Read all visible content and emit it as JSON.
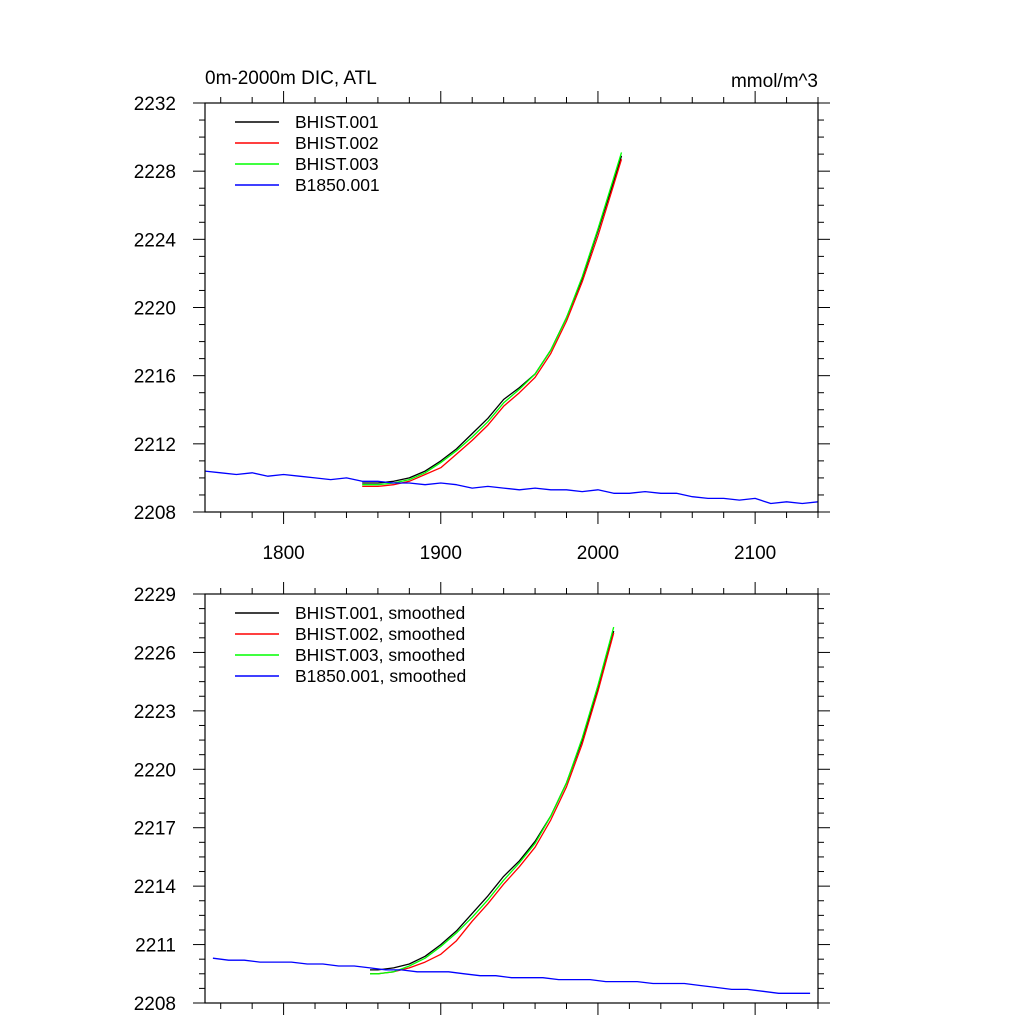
{
  "chart_data": [
    {
      "type": "line",
      "title": "0m-2000m DIC, ATL",
      "units": "mmol/m^3",
      "xlim": [
        1750,
        2140
      ],
      "ylim": [
        2208,
        2232
      ],
      "xticks": [
        1800,
        1900,
        2000,
        2100
      ],
      "yticks": [
        2208,
        2212,
        2216,
        2220,
        2224,
        2228,
        2232
      ],
      "legend_position": "top-left",
      "series": [
        {
          "name": "BHIST.001",
          "color": "#000000",
          "x": [
            1850,
            1860,
            1870,
            1880,
            1890,
            1900,
            1910,
            1920,
            1930,
            1940,
            1950,
            1960,
            1970,
            1980,
            1990,
            2000,
            2010,
            2015
          ],
          "y": [
            2209.7,
            2209.7,
            2209.8,
            2210.0,
            2210.4,
            2211.0,
            2211.7,
            2212.6,
            2213.5,
            2214.6,
            2215.3,
            2216.1,
            2217.5,
            2219.4,
            2221.7,
            2224.5,
            2227.4,
            2228.9
          ]
        },
        {
          "name": "BHIST.002",
          "color": "#ff0000",
          "x": [
            1850,
            1860,
            1870,
            1880,
            1890,
            1900,
            1910,
            1920,
            1930,
            1940,
            1950,
            1960,
            1970,
            1980,
            1990,
            2000,
            2010,
            2015
          ],
          "y": [
            2209.5,
            2209.5,
            2209.6,
            2209.8,
            2210.2,
            2210.6,
            2211.4,
            2212.2,
            2213.1,
            2214.2,
            2215.0,
            2215.9,
            2217.3,
            2219.2,
            2221.5,
            2224.2,
            2227.2,
            2228.7
          ]
        },
        {
          "name": "BHIST.003",
          "color": "#00ff00",
          "x": [
            1850,
            1860,
            1870,
            1880,
            1890,
            1900,
            1910,
            1920,
            1930,
            1940,
            1950,
            1960,
            1970,
            1980,
            1990,
            2000,
            2010,
            2015
          ],
          "y": [
            2209.6,
            2209.6,
            2209.7,
            2209.9,
            2210.3,
            2210.9,
            2211.6,
            2212.4,
            2213.3,
            2214.4,
            2215.2,
            2216.1,
            2217.5,
            2219.4,
            2221.8,
            2224.6,
            2227.6,
            2229.1
          ]
        },
        {
          "name": "B1850.001",
          "color": "#0000ff",
          "x": [
            1750,
            1760,
            1770,
            1780,
            1790,
            1800,
            1810,
            1820,
            1830,
            1840,
            1850,
            1860,
            1870,
            1880,
            1890,
            1900,
            1910,
            1920,
            1930,
            1940,
            1950,
            1960,
            1970,
            1980,
            1990,
            2000,
            2010,
            2020,
            2030,
            2040,
            2050,
            2060,
            2070,
            2080,
            2090,
            2100,
            2110,
            2120,
            2130,
            2140
          ],
          "y": [
            2210.4,
            2210.3,
            2210.2,
            2210.3,
            2210.1,
            2210.2,
            2210.1,
            2210.0,
            2209.9,
            2210.0,
            2209.8,
            2209.8,
            2209.7,
            2209.7,
            2209.6,
            2209.7,
            2209.6,
            2209.4,
            2209.5,
            2209.4,
            2209.3,
            2209.4,
            2209.3,
            2209.3,
            2209.2,
            2209.3,
            2209.1,
            2209.1,
            2209.2,
            2209.1,
            2209.1,
            2208.9,
            2208.8,
            2208.8,
            2208.7,
            2208.8,
            2208.5,
            2208.6,
            2208.5,
            2208.6
          ]
        }
      ]
    },
    {
      "type": "line",
      "xlim": [
        1750,
        2140
      ],
      "ylim": [
        2208,
        2229
      ],
      "xticks": [
        1800,
        1900,
        2000,
        2100
      ],
      "yticks": [
        2208,
        2211,
        2214,
        2217,
        2220,
        2223,
        2226,
        2229
      ],
      "legend_position": "top-left",
      "series": [
        {
          "name": "BHIST.001, smoothed",
          "color": "#000000",
          "x": [
            1855,
            1860,
            1870,
            1880,
            1890,
            1900,
            1910,
            1920,
            1930,
            1940,
            1950,
            1960,
            1970,
            1980,
            1990,
            2000,
            2010
          ],
          "y": [
            2209.7,
            2209.7,
            2209.8,
            2210.0,
            2210.4,
            2211.0,
            2211.7,
            2212.6,
            2213.5,
            2214.5,
            2215.3,
            2216.3,
            2217.6,
            2219.3,
            2221.5,
            2224.1,
            2227.1
          ]
        },
        {
          "name": "BHIST.002, smoothed",
          "color": "#ff0000",
          "x": [
            1855,
            1860,
            1870,
            1880,
            1890,
            1900,
            1910,
            1920,
            1930,
            1940,
            1950,
            1960,
            1970,
            1980,
            1990,
            2000,
            2010
          ],
          "y": [
            2209.5,
            2209.5,
            2209.6,
            2209.8,
            2210.1,
            2210.5,
            2211.2,
            2212.2,
            2213.1,
            2214.1,
            2215.0,
            2216.0,
            2217.4,
            2219.1,
            2221.3,
            2224.0,
            2227.0
          ]
        },
        {
          "name": "BHIST.003, smoothed",
          "color": "#00ff00",
          "x": [
            1855,
            1860,
            1870,
            1880,
            1890,
            1900,
            1910,
            1920,
            1930,
            1940,
            1950,
            1960,
            1970,
            1980,
            1990,
            2000,
            2010
          ],
          "y": [
            2209.5,
            2209.5,
            2209.6,
            2209.9,
            2210.3,
            2210.9,
            2211.6,
            2212.4,
            2213.3,
            2214.3,
            2215.2,
            2216.2,
            2217.6,
            2219.3,
            2221.6,
            2224.3,
            2227.3
          ]
        },
        {
          "name": "B1850.001, smoothed",
          "color": "#0000ff",
          "x": [
            1755,
            1765,
            1775,
            1785,
            1795,
            1805,
            1815,
            1825,
            1835,
            1845,
            1855,
            1865,
            1875,
            1885,
            1895,
            1905,
            1915,
            1925,
            1935,
            1945,
            1955,
            1965,
            1975,
            1985,
            1995,
            2005,
            2015,
            2025,
            2035,
            2045,
            2055,
            2065,
            2075,
            2085,
            2095,
            2105,
            2115,
            2125,
            2135
          ],
          "y": [
            2210.3,
            2210.2,
            2210.2,
            2210.1,
            2210.1,
            2210.1,
            2210.0,
            2210.0,
            2209.9,
            2209.9,
            2209.8,
            2209.7,
            2209.7,
            2209.6,
            2209.6,
            2209.6,
            2209.5,
            2209.4,
            2209.4,
            2209.3,
            2209.3,
            2209.3,
            2209.2,
            2209.2,
            2209.2,
            2209.1,
            2209.1,
            2209.1,
            2209.0,
            2209.0,
            2209.0,
            2208.9,
            2208.8,
            2208.7,
            2208.7,
            2208.6,
            2208.5,
            2208.5,
            2208.5
          ]
        }
      ]
    }
  ]
}
